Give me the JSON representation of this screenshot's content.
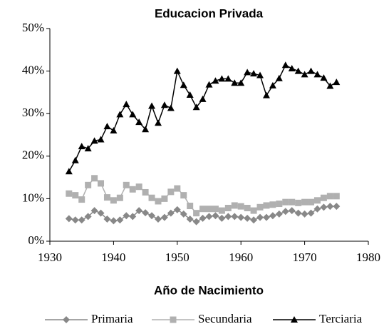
{
  "chart_data": {
    "type": "line",
    "title": "Educacion Privada",
    "x_label": "Año de Nacimiento",
    "x": [
      1933,
      1934,
      1935,
      1936,
      1937,
      1938,
      1939,
      1940,
      1941,
      1942,
      1943,
      1944,
      1945,
      1946,
      1947,
      1948,
      1949,
      1950,
      1951,
      1952,
      1953,
      1954,
      1955,
      1956,
      1957,
      1958,
      1959,
      1960,
      1961,
      1962,
      1963,
      1964,
      1965,
      1966,
      1967,
      1968,
      1969,
      1970,
      1971,
      1972,
      1973,
      1974,
      1975
    ],
    "series": [
      {
        "name": "Primaria",
        "color": "#888888",
        "marker": "diamond",
        "values": [
          5.3,
          5,
          5,
          5.8,
          7.2,
          6.6,
          5.2,
          4.8,
          5,
          6,
          5.8,
          7.2,
          6.7,
          6,
          5.2,
          5.6,
          6.6,
          7.4,
          6.4,
          5.2,
          4.6,
          5.4,
          5.8,
          6,
          5.4,
          5.8,
          5.8,
          5.6,
          5.4,
          5,
          5.6,
          5.6,
          6,
          6.4,
          7,
          7.2,
          6.6,
          6.4,
          6.6,
          7.6,
          8,
          8.2,
          8.2
        ]
      },
      {
        "name": "Secundaria",
        "color": "#b0b0b0",
        "marker": "square",
        "values": [
          11.2,
          10.8,
          9.8,
          13.2,
          14.8,
          13.6,
          10.3,
          9.6,
          10.2,
          13.2,
          12.2,
          12.8,
          11.5,
          10.2,
          9.4,
          10,
          11.6,
          12.4,
          10.8,
          8.3,
          6.6,
          7.6,
          7.6,
          7.6,
          7.2,
          7.8,
          8.4,
          8.2,
          7.8,
          7.2,
          8,
          8.4,
          8.6,
          8.8,
          9.2,
          9.2,
          9,
          9.2,
          9.2,
          9.6,
          10.2,
          10.6,
          10.6
        ]
      },
      {
        "name": "Terciaria",
        "color": "#000000",
        "marker": "triangle",
        "values": [
          16.4,
          19,
          22.3,
          21.8,
          23.6,
          23.9,
          27,
          26,
          29.8,
          32.2,
          29.8,
          28,
          26.3,
          31.8,
          27.8,
          32,
          31.3,
          40,
          36.7,
          34.4,
          31.5,
          33.4,
          36.8,
          37.7,
          38.2,
          38.2,
          37.2,
          37.2,
          39.7,
          39.4,
          39,
          34.3,
          36.6,
          38.3,
          41.4,
          40.6,
          40,
          39.2,
          40,
          39.2,
          38.4,
          36.5,
          37.4
        ]
      }
    ],
    "xlim": [
      1930,
      1980
    ],
    "xticks": [
      1930,
      1940,
      1950,
      1960,
      1970,
      1980
    ],
    "ylim": [
      0,
      50
    ],
    "yticks": [
      {
        "value": 0,
        "label": "0%"
      },
      {
        "value": 10,
        "label": "10%"
      },
      {
        "value": 20,
        "label": "20%"
      },
      {
        "value": 30,
        "label": "30%"
      },
      {
        "value": 40,
        "label": "40%"
      },
      {
        "value": 50,
        "label": "50%"
      }
    ],
    "grid": false,
    "legend": "bottom"
  }
}
